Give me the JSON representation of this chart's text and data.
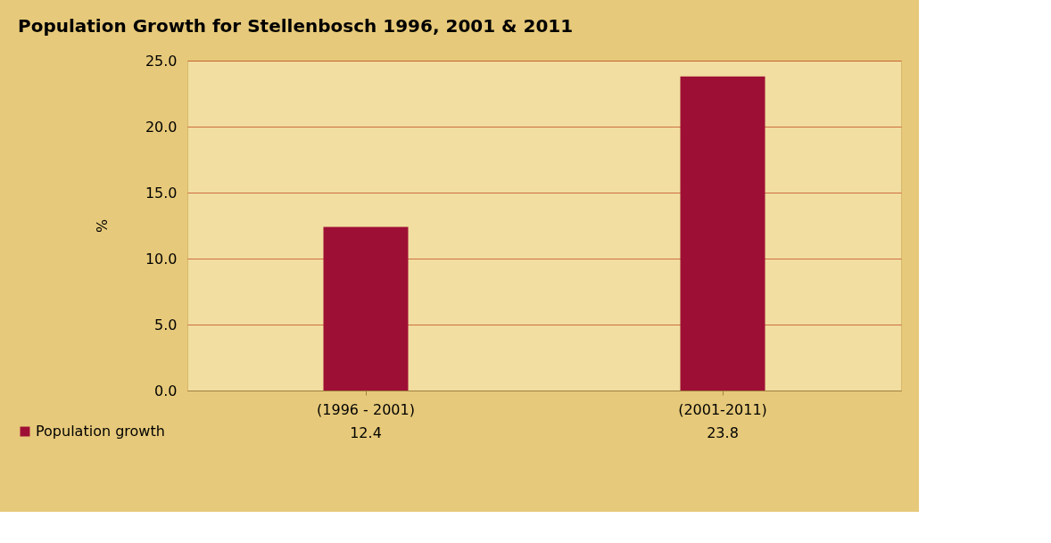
{
  "chart_data": {
    "type": "bar",
    "title": "Population Growth for Stellenbosch 1996, 2001 & 2011",
    "ylabel": "%",
    "categories": [
      "(1996 - 2001)",
      "(2001-2011)"
    ],
    "series": [
      {
        "name": "Population growth",
        "color": "#9e0f35",
        "values": [
          12.4,
          23.8
        ]
      }
    ],
    "ylim": [
      0,
      25
    ],
    "yticks": [
      {
        "value": 0,
        "label": "0.0"
      },
      {
        "value": 5,
        "label": "5.0"
      },
      {
        "value": 10,
        "label": "10.0"
      },
      {
        "value": 15,
        "label": "15.0"
      },
      {
        "value": 20,
        "label": "20.0"
      },
      {
        "value": 25,
        "label": "25.0"
      }
    ],
    "grid": "y",
    "legend": "bottom",
    "data_labels": true
  }
}
